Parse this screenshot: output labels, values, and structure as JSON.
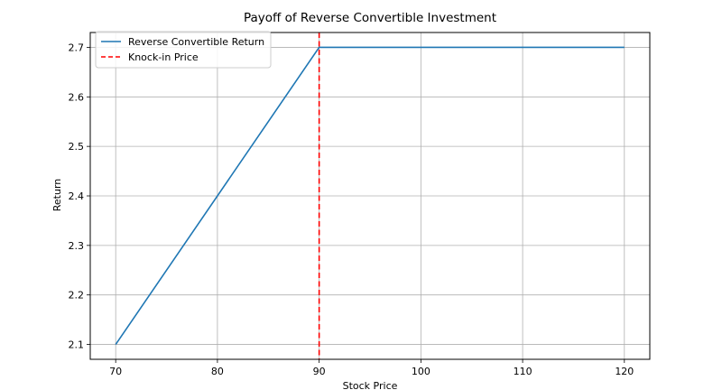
{
  "chart_data": {
    "type": "line",
    "title": "Payoff of Reverse Convertible Investment",
    "xlabel": "Stock Price",
    "ylabel": "Return",
    "xlim": [
      67.5,
      122.5
    ],
    "ylim": [
      2.07,
      2.73
    ],
    "xticks": [
      70,
      80,
      90,
      100,
      110,
      120
    ],
    "yticks": [
      2.1,
      2.2,
      2.3,
      2.4,
      2.5,
      2.6,
      2.7
    ],
    "xtick_labels": [
      "70",
      "80",
      "90",
      "100",
      "110",
      "120"
    ],
    "ytick_labels": [
      "2.1",
      "2.2",
      "2.3",
      "2.4",
      "2.5",
      "2.6",
      "2.7"
    ],
    "grid": true,
    "legend_position": "upper-left",
    "series": [
      {
        "name": "Reverse Convertible Return",
        "color": "#1f77b4",
        "style": "solid",
        "x": [
          70,
          90,
          120
        ],
        "y": [
          2.1,
          2.7,
          2.7
        ]
      }
    ],
    "vlines": [
      {
        "name": "Knock-in Price",
        "color": "#ff0000",
        "style": "dashed",
        "x": 90
      }
    ]
  }
}
